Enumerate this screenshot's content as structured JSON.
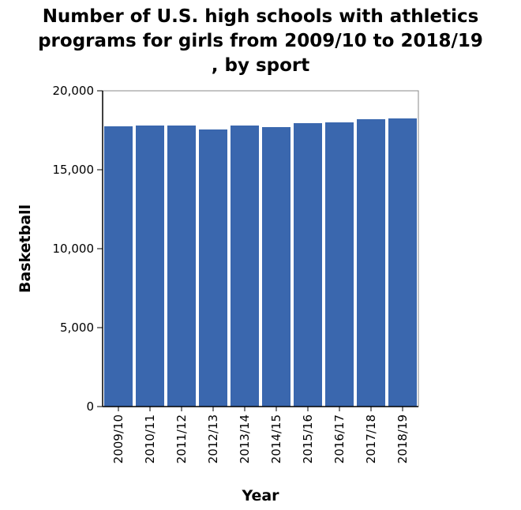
{
  "chart_data": {
    "type": "bar",
    "title": "Number of U.S. high schools with athletics programs for girls from 2009/10 to 2018/19 , by sport",
    "title_lines": [
      "Number of U.S. high schools with athletics",
      "programs for girls from 2009/10 to 2018/19",
      ", by sport"
    ],
    "xlabel": "Year",
    "ylabel": "Basketball",
    "categories": [
      "2009/10",
      "2010/11",
      "2011/12",
      "2012/13",
      "2013/14",
      "2014/15",
      "2015/16",
      "2016/17",
      "2017/18",
      "2018/19"
    ],
    "values": [
      17750,
      17800,
      17800,
      17550,
      17800,
      17700,
      17950,
      18000,
      18200,
      18250
    ],
    "ylim": [
      0,
      20000
    ],
    "yticks": [
      0,
      5000,
      10000,
      15000,
      20000
    ],
    "ytick_labels": [
      "0",
      "5,000",
      "10,000",
      "15,000",
      "20,000"
    ],
    "bar_color": "#3a67ae",
    "grid": false,
    "legend": "none"
  }
}
